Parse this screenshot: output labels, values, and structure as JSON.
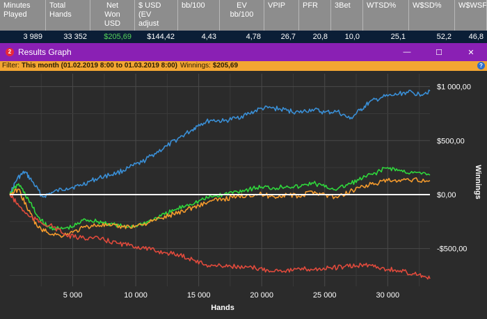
{
  "stats_table": {
    "headers": [
      {
        "label": "Minutes\nPlayed",
        "align": "left"
      },
      {
        "label": "Total\nHands",
        "align": "left"
      },
      {
        "label": "Net\nWon\nUSD",
        "align": "center"
      },
      {
        "label": "$ USD\n(EV\nadjust",
        "align": "left"
      },
      {
        "label": "bb/100",
        "align": "left"
      },
      {
        "label": "EV\nbb/100",
        "align": "center"
      },
      {
        "label": "VPIP",
        "align": "left"
      },
      {
        "label": "PFR",
        "align": "left"
      },
      {
        "label": "3Bet",
        "align": "left"
      },
      {
        "label": "WTSD%",
        "align": "left"
      },
      {
        "label": "W$SD%",
        "align": "left"
      },
      {
        "label": "W$WSF",
        "align": "left"
      }
    ],
    "values": [
      "3 989",
      "33 352",
      "$205,69",
      "$144,42",
      "4,43",
      "4,78",
      "26,7",
      "20,8",
      "10,0",
      "25,1",
      "52,2",
      "46,8"
    ]
  },
  "window": {
    "icon_text": "2",
    "title": "Results Graph",
    "minimize_glyph": "—",
    "maximize_glyph": "☐",
    "close_glyph": "✕"
  },
  "filter": {
    "label": "Filter:",
    "value": "This month (01.02.2019 8:00 to 01.03.2019 8:00)",
    "winnings_label": "Winnings:",
    "winnings_value": "$205,69",
    "help_glyph": "?"
  },
  "colors": {
    "background": "#2b2b2b",
    "grid": "#4a4a4a",
    "zero_line": "#ffffff",
    "blue": "#3a8fd6",
    "green": "#2fd73c",
    "orange": "#f49a2c",
    "red": "#e04a3c"
  },
  "chart_data": {
    "type": "line",
    "xlabel": "Hands",
    "ylabel": "Winnings",
    "xlim": [
      0,
      33352
    ],
    "ylim": [
      -850,
      1120
    ],
    "x_ticks": [
      5000,
      10000,
      15000,
      20000,
      25000,
      30000
    ],
    "x_tick_labels": [
      "5 000",
      "10 000",
      "15 000",
      "20 000",
      "25 000",
      "30 000"
    ],
    "y_ticks": [
      1000,
      500,
      0,
      -500
    ],
    "y_tick_labels": [
      "$1 000,00",
      "$500,00",
      "$0,00",
      "-$500,00"
    ],
    "grid": true,
    "series": [
      {
        "color": "#3a8fd6",
        "x": [
          0,
          600,
          1200,
          1800,
          2600,
          3400,
          4500,
          5500,
          6500,
          7500,
          8500,
          9500,
          10500,
          11500,
          12500,
          13500,
          14500,
          15000,
          16000,
          17000,
          18000,
          19000,
          20000,
          21000,
          22000,
          23000,
          24000,
          25000,
          26000,
          27000,
          27800,
          28500,
          29500,
          30500,
          31500,
          32500,
          33352
        ],
        "y": [
          0,
          150,
          210,
          120,
          -20,
          20,
          60,
          80,
          130,
          170,
          200,
          250,
          300,
          380,
          450,
          530,
          600,
          650,
          690,
          680,
          710,
          750,
          800,
          800,
          780,
          760,
          790,
          760,
          770,
          700,
          780,
          850,
          900,
          920,
          950,
          930,
          960
        ]
      },
      {
        "color": "#2fd73c",
        "x": [
          0,
          700,
          1500,
          2200,
          3000,
          4000,
          5000,
          6000,
          7000,
          8000,
          9000,
          10000,
          11000,
          12000,
          13000,
          14000,
          15000,
          16000,
          17000,
          18000,
          19000,
          20000,
          21000,
          22000,
          23000,
          24000,
          25000,
          26000,
          27000,
          28000,
          29000,
          30000,
          31000,
          32000,
          33352
        ],
        "y": [
          0,
          100,
          -50,
          -200,
          -300,
          -320,
          -300,
          -230,
          -250,
          -270,
          -300,
          -290,
          -250,
          -200,
          -150,
          -100,
          -60,
          -20,
          0,
          30,
          50,
          70,
          60,
          80,
          70,
          110,
          70,
          50,
          100,
          150,
          200,
          250,
          220,
          200,
          180
        ]
      },
      {
        "color": "#f49a2c",
        "x": [
          0,
          700,
          1500,
          2200,
          3000,
          4000,
          5000,
          6000,
          7000,
          8000,
          9000,
          10000,
          11000,
          12000,
          13000,
          14000,
          15000,
          16000,
          17000,
          18000,
          19000,
          20000,
          21000,
          22000,
          23000,
          24000,
          25000,
          26000,
          27000,
          28000,
          29000,
          30000,
          31000,
          32000,
          33352
        ],
        "y": [
          0,
          50,
          -150,
          -300,
          -350,
          -380,
          -350,
          -300,
          -280,
          -290,
          -300,
          -290,
          -260,
          -220,
          -180,
          -140,
          -100,
          -60,
          -40,
          -20,
          0,
          0,
          -20,
          0,
          -20,
          30,
          0,
          -30,
          30,
          80,
          100,
          130,
          120,
          140,
          130
        ]
      },
      {
        "color": "#e04a3c",
        "x": [
          0,
          700,
          1500,
          2500,
          3500,
          4500,
          5500,
          6500,
          7500,
          8500,
          9500,
          10500,
          11500,
          12500,
          13500,
          14500,
          15500,
          16500,
          17500,
          18500,
          19500,
          20500,
          21500,
          22500,
          23500,
          24500,
          25500,
          26500,
          27500,
          28500,
          29500,
          30500,
          31500,
          32500,
          33352
        ],
        "y": [
          0,
          -100,
          -200,
          -260,
          -300,
          -380,
          -400,
          -400,
          -420,
          -450,
          -470,
          -490,
          -520,
          -540,
          -560,
          -600,
          -650,
          -660,
          -660,
          -680,
          -680,
          -700,
          -700,
          -700,
          -690,
          -690,
          -680,
          -670,
          -660,
          -650,
          -680,
          -700,
          -720,
          -740,
          -780
        ]
      }
    ]
  }
}
